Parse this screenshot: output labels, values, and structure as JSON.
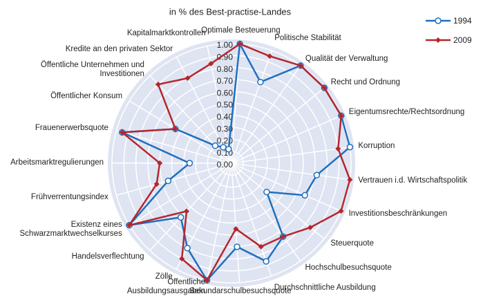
{
  "chart_data": {
    "type": "radar",
    "title": "in % des Best-practise-Landes",
    "categories": [
      "Optimale Besteuerung",
      "Politische Stabilität",
      "Qualität der Verwaltung",
      "Recht und Ordnung",
      "Eigentumsrechte/Rechtsordnung",
      "Korruption",
      "Vertrauen i.d. Wirtschaftspolitik",
      "Investitionsbeschränkungen",
      "Steuerquote",
      "Hochschulbesuchsquote",
      "Durchschnittliche Ausbildung",
      "Sekundarschulbesuchsquote",
      "Öffentliche Ausbildungsausgaben",
      "Zölle",
      "Handelsverflechtung",
      "Existenz eines Schwarzmarktwechselkurses",
      "Frühverrentungsindex",
      "Arbeitsmarktregulierungen",
      "Frauenerwerbsquote",
      "Öffentlicher Konsum",
      "Öffentliche Unternehmen und Investitionen",
      "Kredite an den privaten Sektor",
      "Kapitalmarktkontrollen"
    ],
    "series": [
      {
        "name": "1994",
        "color": "#1f6fbf",
        "marker": "circle",
        "values": [
          1.0,
          0.72,
          1.0,
          1.0,
          1.0,
          1.0,
          0.72,
          0.67,
          0.38,
          0.75,
          0.87,
          0.7,
          1.0,
          0.8,
          0.62,
          1.0,
          0.55,
          0.35,
          0.95,
          0.55,
          0.2,
          0.15,
          0.12
        ]
      },
      {
        "name": "2009",
        "color": "#b5262b",
        "marker": "diamond",
        "values": [
          1.0,
          0.95,
          1.0,
          1.0,
          1.0,
          0.9,
          1.0,
          1.0,
          0.85,
          0.75,
          0.74,
          0.55,
          1.0,
          0.9,
          0.55,
          1.0,
          0.65,
          0.6,
          0.95,
          0.55,
          0.9,
          0.8,
          0.85
        ]
      }
    ],
    "rlim": [
      0,
      1
    ],
    "rticks": [
      {
        "value": 0,
        "label": "0.00"
      },
      {
        "value": 0.1,
        "label": "0.10"
      },
      {
        "value": 0.2,
        "label": "0.20"
      },
      {
        "value": 0.3,
        "label": "0.30"
      },
      {
        "value": 0.4,
        "label": "0.40"
      },
      {
        "value": 0.5,
        "label": "0.50"
      },
      {
        "value": 0.6,
        "label": "0.60"
      },
      {
        "value": 0.7,
        "label": "0.70"
      },
      {
        "value": 0.8,
        "label": "0.80"
      },
      {
        "value": 0.9,
        "label": "0.90"
      },
      {
        "value": 1,
        "label": "1.00"
      }
    ],
    "grid": true,
    "legend": "top-right"
  }
}
